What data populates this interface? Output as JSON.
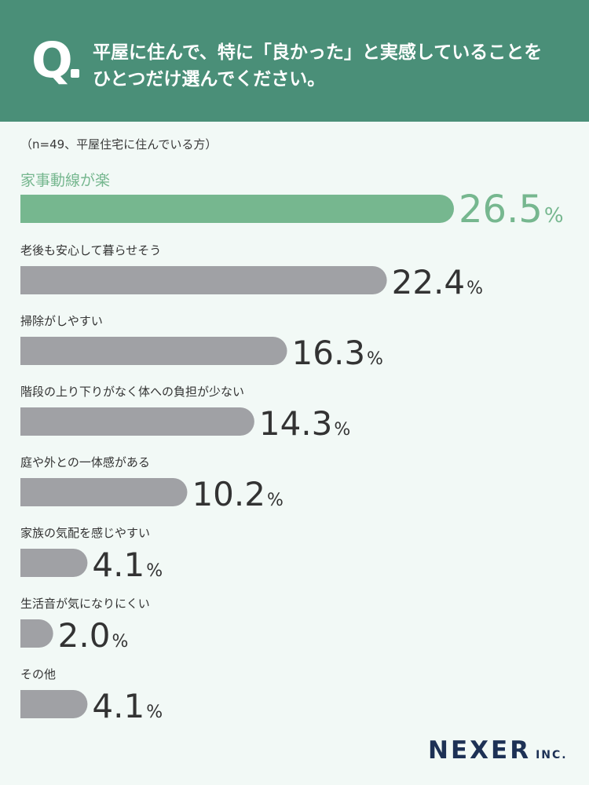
{
  "question": {
    "mark": "Q",
    "text": "平屋に住んで、特に「良かった」と実感していることを\nひとつだけ選んでください。"
  },
  "note": "（n=49、平屋住宅に住んでいる方）",
  "logo": {
    "main": "NEXER",
    "sub": "INC."
  },
  "colors": {
    "header_bg": "#4a8f78",
    "highlight": "#76b78f",
    "bar": "#a0a1a5",
    "value_text": "#333333",
    "label_text": "#333333"
  },
  "chart_data": {
    "type": "bar",
    "orientation": "horizontal",
    "unit": "%",
    "categories": [
      "家事動線が楽",
      "老後も安心して暮らせそう",
      "掃除がしやすい",
      "階段の上り下りがなく体への負担が少ない",
      "庭や外との一体感がある",
      "家族の気配を感じやすい",
      "生活音が気になりにくい",
      "その他"
    ],
    "values": [
      26.5,
      22.4,
      16.3,
      14.3,
      10.2,
      4.1,
      2.0,
      4.1
    ],
    "value_labels": [
      "26.5",
      "22.4",
      "16.3",
      "14.3",
      "10.2",
      "4.1",
      "2.0",
      "4.1"
    ],
    "highlight_index": 0,
    "xlim": [
      0,
      26.5
    ]
  }
}
